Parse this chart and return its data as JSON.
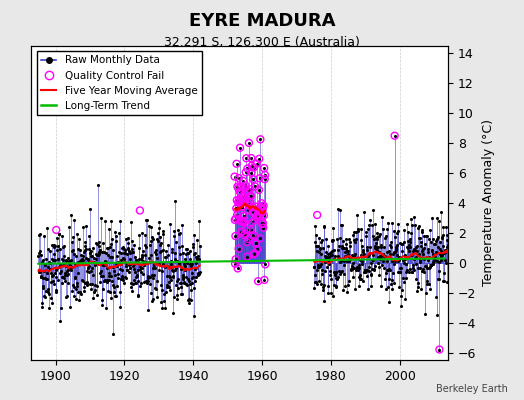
{
  "title": "EYRE MADURA",
  "subtitle": "32.291 S, 126.300 E (Australia)",
  "ylabel_right": "Temperature Anomaly (°C)",
  "credit": "Berkeley Earth",
  "xlim": [
    1893,
    2014
  ],
  "ylim": [
    -6.5,
    14.5
  ],
  "yticks_right": [
    -6,
    -4,
    -2,
    0,
    2,
    4,
    6,
    8,
    10,
    12,
    14
  ],
  "xticks": [
    1900,
    1920,
    1940,
    1960,
    1980,
    2000
  ],
  "period1_start": 1895,
  "period1_end": 1941,
  "period2_start": 1952,
  "period2_end": 1960,
  "period3_start": 1975,
  "period3_end": 2013,
  "seed": 42,
  "raw_color": "#4040CC",
  "ma_color": "#FF0000",
  "trend_color": "#00BB00",
  "qc_color": "#FF00FF",
  "dot_color": "#000000",
  "bg_color": "#E8E8E8",
  "plot_bg": "#FFFFFF",
  "legend_items": [
    "Raw Monthly Data",
    "Quality Control Fail",
    "Five Year Moving Average",
    "Long-Term Trend"
  ],
  "title_fontsize": 13,
  "subtitle_fontsize": 9,
  "tick_fontsize": 9
}
